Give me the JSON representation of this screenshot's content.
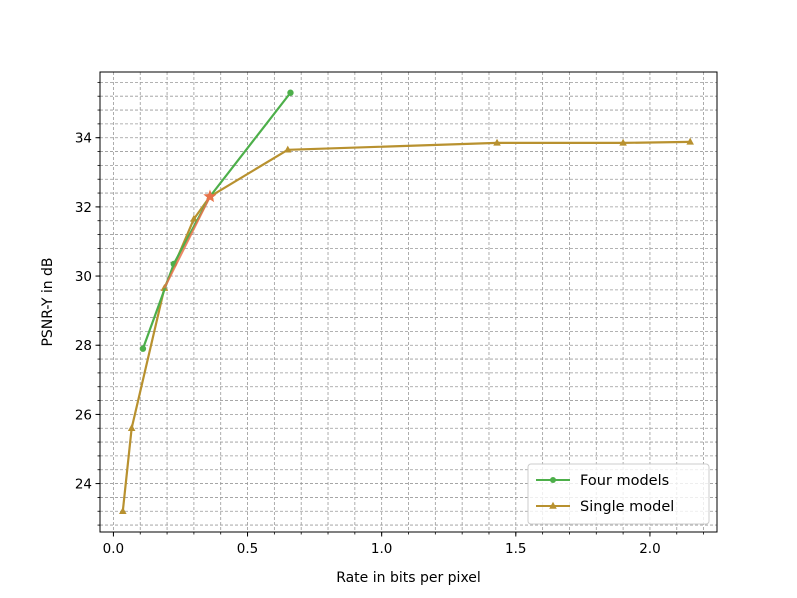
{
  "chart_data": {
    "type": "line",
    "xlabel": "Rate in bits per pixel",
    "ylabel": "PSNR-Y in dB",
    "xlim": [
      -0.05,
      2.25
    ],
    "ylim": [
      22.6,
      35.9
    ],
    "x_ticks": [
      0.0,
      0.5,
      1.0,
      1.5,
      2.0
    ],
    "x_tick_labels": [
      "0.0",
      "0.5",
      "1.0",
      "1.5",
      "2.0"
    ],
    "y_ticks": [
      24,
      26,
      28,
      30,
      32,
      34
    ],
    "y_tick_labels": [
      "24",
      "26",
      "28",
      "30",
      "32",
      "34"
    ],
    "grid": "major and minor, dashed",
    "legend": "lower-right",
    "series": [
      {
        "name": "Four models",
        "color": "#4daf4a",
        "marker": "circle",
        "x": [
          0.11,
          0.225,
          0.36,
          0.66
        ],
        "y": [
          27.9,
          30.35,
          32.3,
          35.3
        ]
      },
      {
        "name": "Single model",
        "color": "#b8912f",
        "marker": "triangle",
        "x": [
          0.035,
          0.068,
          0.19,
          0.3,
          0.36,
          0.65,
          1.43,
          1.9,
          2.15
        ],
        "y": [
          23.2,
          25.6,
          29.65,
          31.65,
          32.3,
          33.65,
          33.85,
          33.85,
          33.88
        ]
      }
    ],
    "overlay_segment": {
      "color": "#e8734a",
      "x": [
        0.19,
        0.36
      ],
      "y": [
        29.65,
        32.3
      ]
    },
    "highlight_point": {
      "color": "#e8734a",
      "marker": "star",
      "x": 0.36,
      "y": 32.3
    }
  }
}
